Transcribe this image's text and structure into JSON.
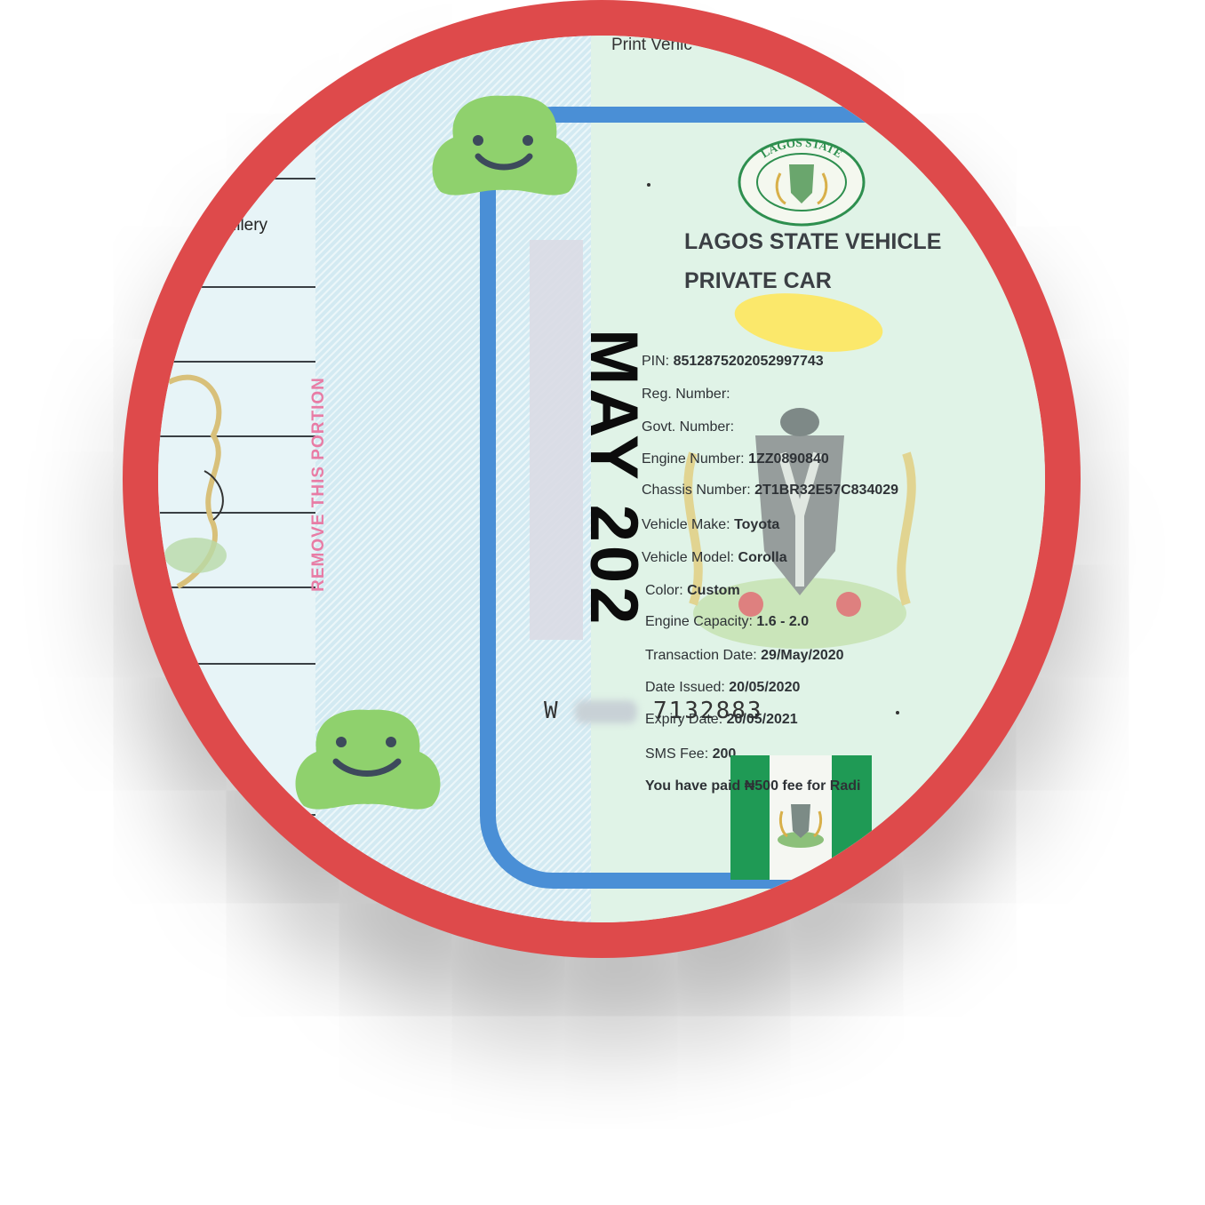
{
  "stub": {
    "partial_word": "illery"
  },
  "strip": {
    "remove_label": "REMOVE THIS PORTION"
  },
  "top_cut_text": "Print Vehic",
  "title": "LAGOS STATE VEHICLE",
  "subtitle": "PRIVATE CAR",
  "seal_text": "LAGOS STATE",
  "month_stamp": "MAY 202",
  "serial": {
    "prefix": "W",
    "suffix": "7132883"
  },
  "fields": [
    {
      "key": "PIN: ",
      "value": "8512875202052997743"
    },
    {
      "key": "Reg. Number:",
      "value": ""
    },
    {
      "key": "Govt. Number:",
      "value": ""
    },
    {
      "key": "Engine Number: ",
      "value": "1ZZ0890840"
    },
    {
      "key": "Chassis Number: ",
      "value": "2T1BR32E57C834029"
    },
    {
      "key": "Vehicle Make: ",
      "value": "Toyota"
    },
    {
      "key": "Vehicle Model: ",
      "value": "Corolla"
    },
    {
      "key": "Color: ",
      "value": "Custom"
    },
    {
      "key": "Engine Capacity: ",
      "value": "1.6 - 2.0"
    },
    {
      "key": "Transaction Date: ",
      "value": "29/May/2020"
    },
    {
      "key": "Date Issued: ",
      "value": "20/05/2020"
    },
    {
      "key": "Expiry Date: ",
      "value": "20/05/2021"
    },
    {
      "key": "SMS Fee: ",
      "value": "200"
    }
  ],
  "paid_note": "You have paid ₦500 fee for Radi",
  "colors": {
    "ring": "#de4a4b",
    "frame": "#4a8fd6",
    "mascot": "#8fd16d",
    "flag_green": "#1f9a55",
    "highlight": "#fbe86b"
  }
}
